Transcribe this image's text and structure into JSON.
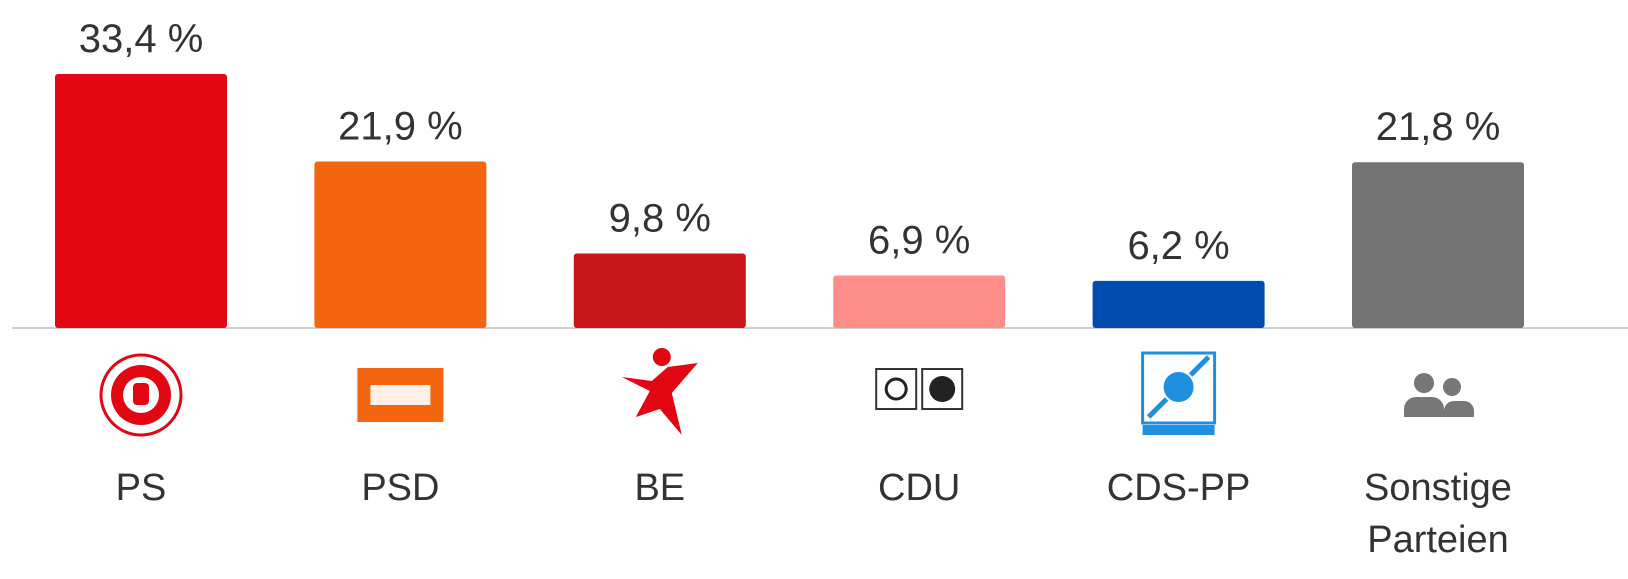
{
  "chart_data": {
    "type": "bar",
    "categories": [
      "PS",
      "PSD",
      "BE",
      "CDU",
      "CDS-PP",
      "Sonstige Parteien"
    ],
    "values": [
      33.4,
      21.9,
      9.8,
      6.9,
      6.2,
      21.8
    ],
    "value_labels": [
      "33,4 %",
      "21,9 %",
      "9,8 %",
      "6,9 %",
      "6,2 %",
      "21,8 %"
    ],
    "colors": [
      "#e20613",
      "#f4650f",
      "#c8161b",
      "#ff8e8a",
      "#004dae",
      "#737373"
    ]
  }
}
